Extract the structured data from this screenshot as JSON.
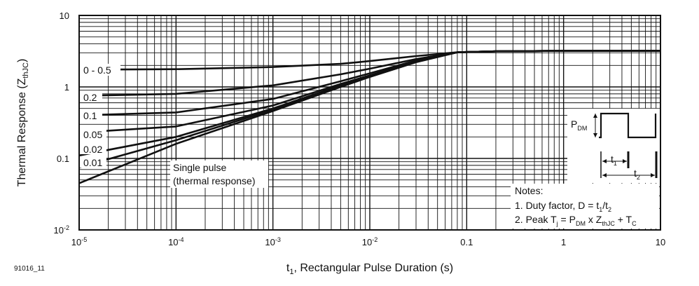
{
  "figure_id": "91016_11",
  "chart_data": {
    "type": "line",
    "xscale": "log",
    "yscale": "log",
    "xlim": [
      1e-05,
      10
    ],
    "ylim": [
      0.01,
      10
    ],
    "grid": true,
    "xlabel": "t1, Rectangular Pulse Duration (s)",
    "ylabel": "Thermal Response (ZthJC)",
    "x_tick_labels": [
      "10-5",
      "10-4",
      "10-3",
      "10-2",
      "0.1",
      "1",
      "10"
    ],
    "y_tick_labels": [
      "10-2",
      "0.1",
      "1",
      "10"
    ],
    "series": [
      {
        "name": "0 - 0.5",
        "x": [
          2e-05,
          0.0001,
          0.001,
          0.005,
          0.01,
          0.03,
          0.08,
          0.2,
          1,
          10
        ],
        "values": [
          1.75,
          1.77,
          1.9,
          2.1,
          2.3,
          2.7,
          3.05,
          3.15,
          3.2,
          3.2
        ]
      },
      {
        "name": "0.2",
        "x": [
          1e-05,
          0.0001,
          0.001,
          0.005,
          0.01,
          0.03,
          0.08,
          0.2,
          1,
          10
        ],
        "values": [
          0.75,
          0.8,
          1.05,
          1.5,
          1.8,
          2.45,
          3.05,
          3.15,
          3.2,
          3.2
        ]
      },
      {
        "name": "0.1",
        "x": [
          1e-05,
          0.0001,
          0.001,
          0.005,
          0.01,
          0.03,
          0.08,
          0.2,
          1,
          10
        ],
        "values": [
          0.4,
          0.44,
          0.68,
          1.2,
          1.55,
          2.35,
          3.05,
          3.15,
          3.2,
          3.2
        ]
      },
      {
        "name": "0.05",
        "x": [
          1e-05,
          0.0001,
          0.001,
          0.005,
          0.01,
          0.03,
          0.08,
          0.2,
          1,
          10
        ],
        "values": [
          0.23,
          0.28,
          0.55,
          1.1,
          1.45,
          2.3,
          3.05,
          3.15,
          3.2,
          3.2
        ]
      },
      {
        "name": "0.02",
        "x": [
          1e-05,
          0.0001,
          0.001,
          0.005,
          0.01,
          0.03,
          0.08,
          0.2,
          1,
          10
        ],
        "values": [
          0.11,
          0.2,
          0.5,
          1.05,
          1.42,
          2.28,
          3.05,
          3.15,
          3.2,
          3.2
        ]
      },
      {
        "name": "0.01",
        "x": [
          1e-05,
          0.0001,
          0.001,
          0.005,
          0.01,
          0.03,
          0.08,
          0.2,
          1,
          10
        ],
        "values": [
          0.075,
          0.18,
          0.48,
          1.02,
          1.4,
          2.25,
          3.05,
          3.15,
          3.2,
          3.2
        ]
      },
      {
        "name": "Single pulse (thermal response)",
        "x": [
          1e-05,
          0.0001,
          0.001,
          0.005,
          0.01,
          0.03,
          0.08,
          0.2,
          1,
          10
        ],
        "values": [
          0.045,
          0.16,
          0.46,
          1.0,
          1.38,
          2.22,
          3.05,
          3.15,
          3.2,
          3.2
        ]
      }
    ],
    "curve_labels": [
      "0 - 0.5",
      "0.2",
      "0.1",
      "0.05",
      "0.02",
      "0.01",
      "Single pulse",
      "(thermal response)"
    ],
    "notes": {
      "title": "Notes:",
      "line1": "1. Duty factor, D = t1/t2",
      "line2": "2. Peak Tj = PDM x ZthJC + TC"
    },
    "inset": {
      "pdm_label": "PDM",
      "t1_label": "t1",
      "t2_label": "t2"
    }
  }
}
